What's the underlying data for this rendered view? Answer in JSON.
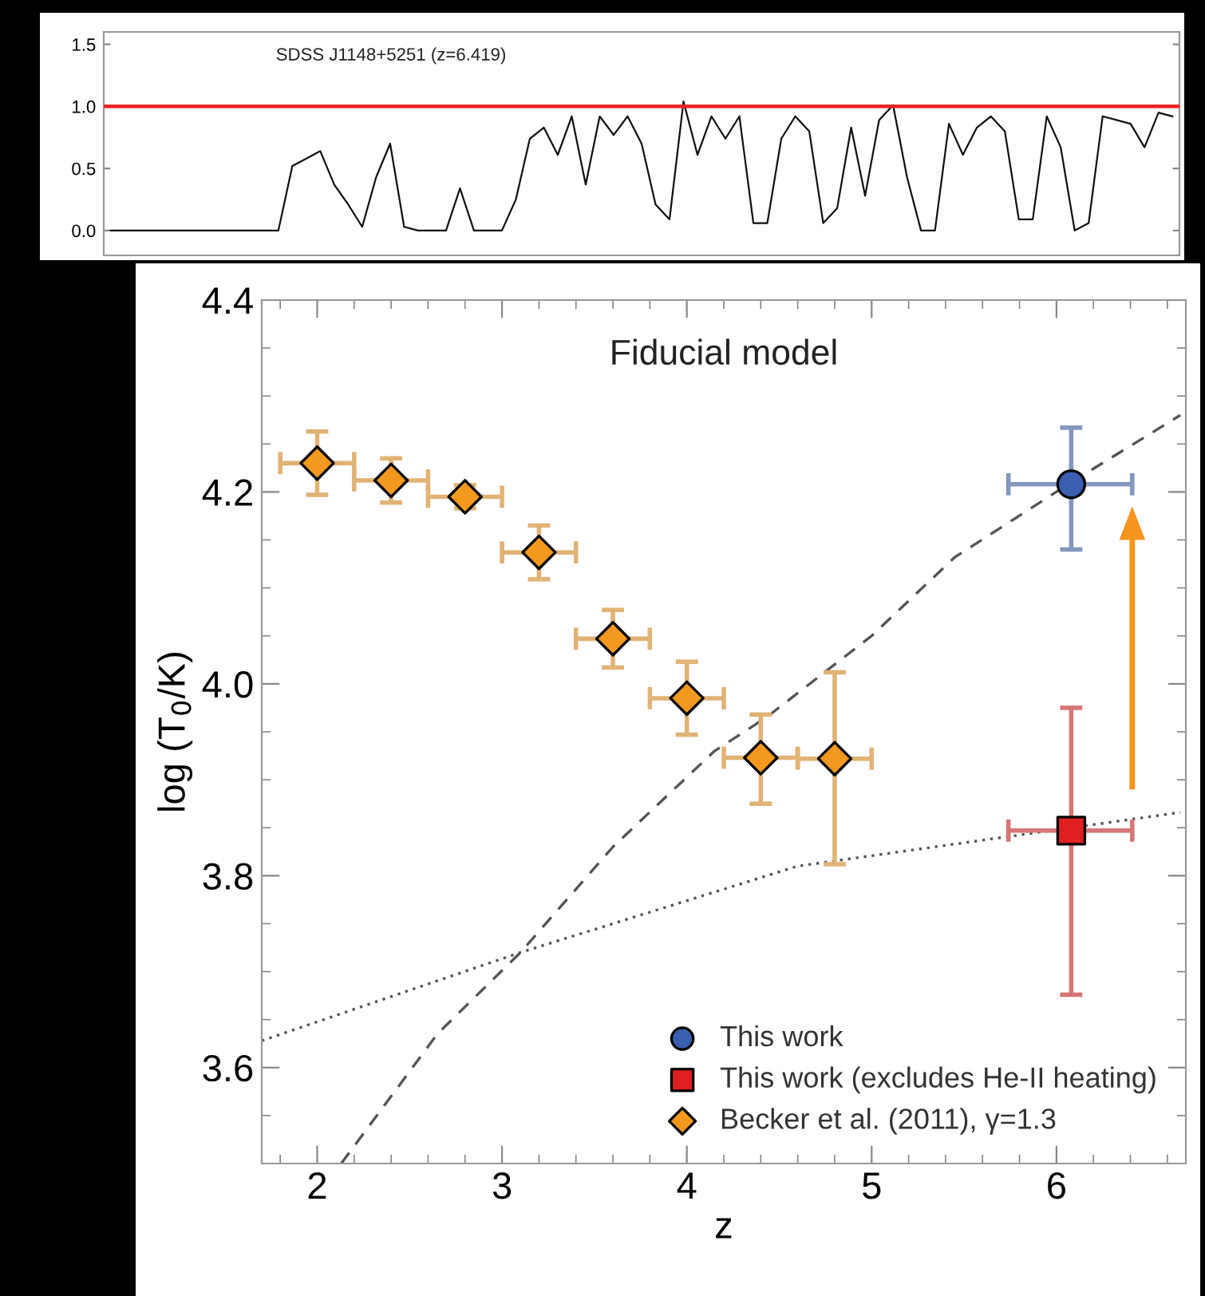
{
  "chart_data": [
    {
      "type": "line",
      "categories": [
        null,
        null,
        null,
        null,
        null,
        null,
        null,
        null,
        null,
        null,
        null,
        null,
        null,
        null,
        null,
        null,
        null,
        null,
        null,
        null,
        null,
        null,
        null,
        null,
        null,
        null,
        null,
        null,
        null,
        null,
        null,
        null,
        null,
        null,
        null,
        null,
        null,
        null,
        null,
        null,
        null,
        null,
        null,
        null,
        null,
        null,
        null,
        null,
        null,
        null,
        null,
        null,
        null,
        null,
        null,
        null,
        null,
        null,
        null,
        null,
        null,
        null,
        null,
        null,
        null,
        null,
        null,
        null,
        null,
        null,
        null,
        null,
        null,
        null,
        null,
        null,
        null
      ],
      "series": [
        {
          "color": "#111111",
          "values": [
            0,
            0,
            0,
            0,
            0,
            0,
            0,
            0,
            0,
            0,
            0,
            0,
            0,
            0.52,
            0.58,
            0.64,
            0.37,
            0.21,
            0.03,
            0.43,
            0.7,
            0.03,
            0,
            0,
            0,
            0.34,
            0,
            0,
            0,
            0.25,
            0.74,
            0.83,
            0.61,
            0.92,
            0.37,
            0.92,
            0.77,
            0.92,
            0.7,
            0.21,
            0.09,
            1.04,
            0.61,
            0.92,
            0.74,
            0.92,
            0.06,
            0.06,
            0.74,
            0.92,
            0.8,
            0.06,
            0.18,
            0.83,
            0.28,
            0.89,
            1.01,
            0.43,
            0,
            0,
            0.86,
            0.61,
            0.83,
            0.92,
            0.8,
            0.09,
            0.09,
            0.92,
            0.67,
            0,
            0.06,
            0.92,
            0.89,
            0.86,
            0.67,
            0.95,
            0.92
          ]
        }
      ],
      "ylim": [
        -0.2,
        1.6
      ],
      "yticks": [
        {
          "value": 0,
          "label": "0.0"
        },
        0.5,
        {
          "value": 1,
          "label": "1.0"
        },
        1.5
      ],
      "tick_labels": "y",
      "ref_lines": [
        {
          "axis": "y",
          "value": 1.0,
          "color": "#ee2222"
        }
      ],
      "annotations": [
        "SDSS J1148+5251 (z=6.419)"
      ],
      "grid": false,
      "legend": false
    },
    {
      "type": "scatter",
      "title": "Fiducial model",
      "xlabel": "z",
      "ylabel": "log (T$_{0}$/K)",
      "xlim": [
        1.7,
        6.7
      ],
      "xticks": [
        2,
        3,
        4,
        5,
        6
      ],
      "ylim": [
        3.5,
        4.4
      ],
      "yticks": [
        3.6,
        3.8,
        {
          "value": 4.0,
          "label": "4.0"
        },
        4.2,
        4.4
      ],
      "grid": false,
      "legend": "bottom right",
      "series": [
        {
          "type": "line",
          "line_style": "dashed",
          "color": "#555555",
          "marker": "none",
          "x": [
            2.13,
            2.65,
            3.1,
            3.6,
            4.15,
            4.43,
            5.0,
            5.45,
            6.08,
            6.67
          ],
          "values": [
            3.5,
            3.635,
            3.72,
            3.83,
            3.93,
            3.965,
            4.05,
            4.132,
            4.21,
            4.28
          ]
        },
        {
          "type": "line",
          "line_style": "dotted",
          "color": "#555555",
          "marker": "none",
          "x": [
            1.7,
            3.1,
            4.6,
            6.08,
            6.67
          ],
          "values": [
            3.628,
            3.72,
            3.81,
            3.85,
            3.866
          ]
        },
        {
          "name": "This work",
          "marker": "circle",
          "color": "#3a5fb0",
          "x": [
            6.08
          ],
          "values": [
            4.208
          ],
          "errors": [
            [
              4.14,
              4.267
            ]
          ],
          "xerrors": [
            [
              5.74,
              6.41
            ]
          ]
        },
        {
          "name": "This work (excludes He-II heating)",
          "marker": "square",
          "color": "#e02020",
          "x": [
            6.08
          ],
          "values": [
            3.847
          ],
          "errors": [
            [
              3.676,
              3.975
            ]
          ],
          "xerrors": [
            [
              5.74,
              6.41
            ]
          ]
        },
        {
          "name": "Becker et al. (2011), γ=1.3",
          "marker": "diamond",
          "color": "#f39a1e",
          "x": [
            2.0,
            2.4,
            2.8,
            3.2,
            3.6,
            4.0,
            4.4,
            4.8
          ],
          "values": [
            4.23,
            4.212,
            4.195,
            4.137,
            4.047,
            3.985,
            3.923,
            3.922
          ],
          "errors": [
            0.033,
            0.023,
            0.012,
            0.028,
            0.03,
            0.038,
            [
              3.875,
              3.968
            ],
            [
              3.812,
              4.012
            ]
          ],
          "xerrors": [
            0.2,
            0.2,
            0.2,
            0.2,
            0.2,
            0.2,
            0.2,
            0.2
          ]
        }
      ]
    }
  ]
}
